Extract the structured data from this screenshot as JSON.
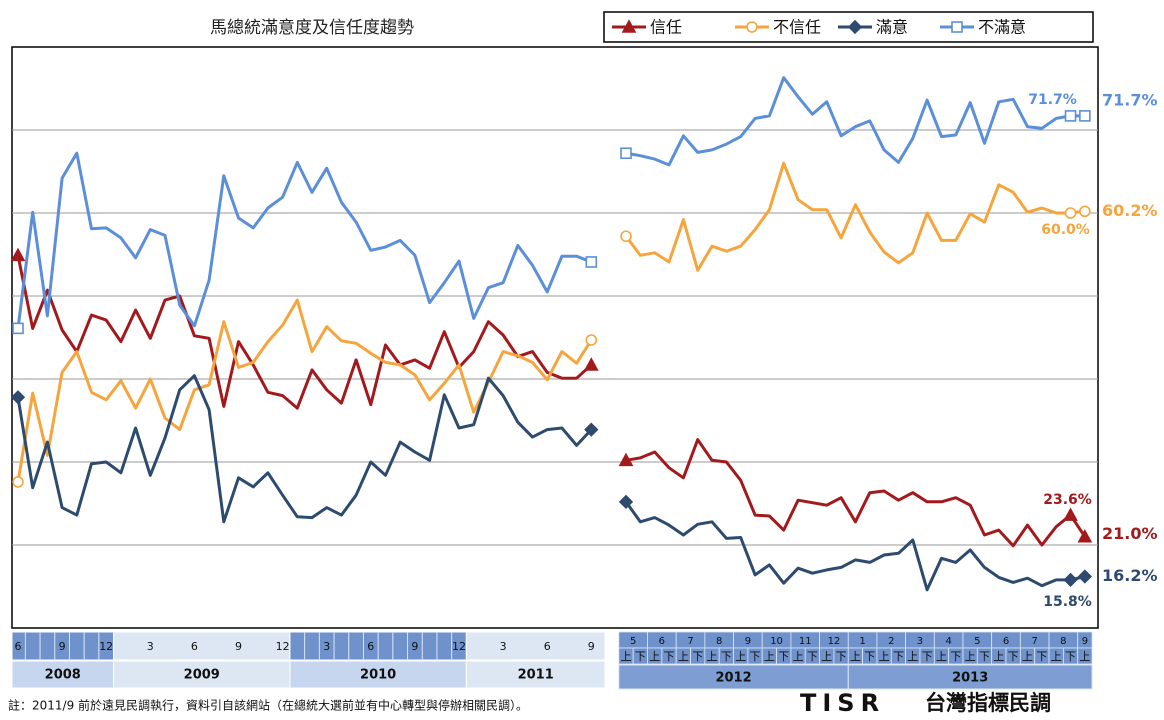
{
  "chart_data": {
    "type": "line",
    "title": "馬總統滿意度及信任度趨勢",
    "ylim": [
      10,
      80
    ],
    "yticks": [
      20,
      30,
      40,
      50,
      60,
      70
    ],
    "grid": true,
    "x_axis": {
      "left": [
        {
          "year": 2008,
          "months": [
            6,
            9,
            12
          ]
        },
        {
          "year": 2009,
          "months": [
            3,
            6,
            9,
            12
          ]
        },
        {
          "year": 2010,
          "months": [
            3,
            6,
            9,
            12
          ]
        },
        {
          "year": 2011,
          "months": [
            3,
            6,
            9
          ]
        }
      ],
      "right": [
        {
          "year": 2012,
          "months": [
            5,
            6,
            7,
            8,
            9,
            10,
            11,
            12
          ]
        },
        {
          "year": 2013,
          "months": [
            1,
            2,
            3,
            4,
            5,
            6,
            7,
            8,
            9
          ]
        }
      ],
      "halves": [
        "上",
        "下"
      ]
    },
    "series": [
      {
        "name": "信任",
        "color": "#a3191c",
        "marker": "triangle",
        "values": [
          54.9,
          46.1,
          50.7,
          45.9,
          43.3,
          47.7,
          47.1,
          44.5,
          48.3,
          44.9,
          49.5,
          50.0,
          45.2,
          44.9,
          36.7,
          44.5,
          41.7,
          38.4,
          38.0,
          36.5,
          41.1,
          38.7,
          37.1,
          42.3,
          36.9,
          44.1,
          41.7,
          42.3,
          41.3,
          45.7,
          41.4,
          43.3,
          46.9,
          45.3,
          42.7,
          43.3,
          40.8,
          40.1,
          40.1,
          41.7,
          null,
          30.2,
          30.5,
          31.2,
          29.3,
          28.1,
          32.7,
          30.2,
          30.0,
          27.8,
          23.6,
          23.5,
          21.8,
          25.4,
          25.1,
          24.8,
          25.7,
          22.8,
          26.3,
          26.5,
          25.4,
          26.3,
          25.2,
          25.2,
          25.7,
          24.8,
          21.2,
          21.8,
          19.9,
          22.4,
          20.0,
          22.2,
          23.6,
          21.0
        ],
        "value_labels": [
          null,
          null,
          null,
          null,
          null,
          null,
          null,
          null,
          null,
          null,
          null,
          null,
          null,
          null,
          null,
          null,
          null,
          null,
          null,
          null,
          null,
          null,
          null,
          null,
          null,
          null,
          null,
          null,
          null,
          null,
          null,
          null,
          null,
          null,
          null,
          null,
          null,
          null,
          null,
          null,
          null,
          null,
          null,
          null,
          null,
          null,
          null,
          null,
          null,
          null,
          null,
          null,
          null,
          null,
          null,
          null,
          null,
          null,
          null,
          null,
          null,
          null,
          null,
          null,
          null,
          null,
          null,
          null,
          null,
          null,
          null,
          null,
          "23.6%",
          "21.0%"
        ]
      },
      {
        "name": "不信任",
        "color": "#f6a53d",
        "marker": "circle-open",
        "values": [
          27.6,
          38.3,
          30.8,
          40.8,
          43.3,
          38.4,
          37.5,
          39.8,
          36.5,
          40.0,
          35.3,
          33.9,
          38.7,
          39.3,
          46.9,
          41.4,
          42.0,
          44.5,
          46.5,
          49.5,
          43.3,
          46.3,
          44.6,
          44.3,
          43.1,
          42.0,
          41.7,
          40.5,
          37.5,
          39.5,
          41.7,
          36.0,
          39.6,
          43.3,
          42.8,
          42.0,
          39.9,
          43.3,
          41.9,
          44.7,
          null,
          57.2,
          54.9,
          55.2,
          54.1,
          59.2,
          53.1,
          56.0,
          55.4,
          56.0,
          58.0,
          60.4,
          66.0,
          61.6,
          60.4,
          60.4,
          57.0,
          61.0,
          57.7,
          55.3,
          54.0,
          55.2,
          60.0,
          56.7,
          56.7,
          59.9,
          58.9,
          63.4,
          62.5,
          60.1,
          60.6,
          60.0,
          60.0,
          60.2
        ],
        "value_labels": [
          null,
          null,
          null,
          null,
          null,
          null,
          null,
          null,
          null,
          null,
          null,
          null,
          null,
          null,
          null,
          null,
          null,
          null,
          null,
          null,
          null,
          null,
          null,
          null,
          null,
          null,
          null,
          null,
          null,
          null,
          null,
          null,
          null,
          null,
          null,
          null,
          null,
          null,
          null,
          null,
          null,
          null,
          null,
          null,
          null,
          null,
          null,
          null,
          null,
          null,
          null,
          null,
          null,
          null,
          null,
          null,
          null,
          null,
          null,
          null,
          null,
          null,
          null,
          null,
          null,
          null,
          null,
          null,
          null,
          null,
          null,
          null,
          "60.0%",
          "60.2%"
        ]
      },
      {
        "name": "滿意",
        "color": "#2d4a6f",
        "marker": "diamond",
        "values": [
          37.8,
          26.9,
          32.4,
          24.5,
          23.6,
          29.8,
          30.0,
          28.7,
          34.1,
          28.4,
          32.9,
          38.7,
          40.4,
          36.3,
          22.8,
          28.1,
          27.0,
          28.7,
          26.0,
          23.4,
          23.3,
          24.5,
          23.6,
          26.0,
          30.0,
          28.4,
          32.4,
          31.2,
          30.2,
          38.1,
          34.1,
          34.5,
          40.1,
          38.0,
          34.8,
          33.0,
          33.9,
          34.1,
          32.0,
          33.9,
          null,
          25.2,
          22.8,
          23.3,
          22.4,
          21.2,
          22.5,
          22.8,
          20.8,
          20.9,
          16.4,
          17.6,
          15.4,
          17.2,
          16.6,
          17.0,
          17.3,
          18.2,
          17.9,
          18.8,
          19.0,
          20.6,
          14.6,
          18.4,
          17.9,
          19.4,
          17.3,
          16.1,
          15.5,
          16.0,
          15.1,
          15.8,
          15.8,
          16.2
        ],
        "value_labels": [
          null,
          null,
          null,
          null,
          null,
          null,
          null,
          null,
          null,
          null,
          null,
          null,
          null,
          null,
          null,
          null,
          null,
          null,
          null,
          null,
          null,
          null,
          null,
          null,
          null,
          null,
          null,
          null,
          null,
          null,
          null,
          null,
          null,
          null,
          null,
          null,
          null,
          null,
          null,
          null,
          null,
          null,
          null,
          null,
          null,
          null,
          null,
          null,
          null,
          null,
          null,
          null,
          null,
          null,
          null,
          null,
          null,
          null,
          null,
          null,
          null,
          null,
          null,
          null,
          null,
          null,
          null,
          null,
          null,
          null,
          null,
          null,
          "15.8%",
          "16.2%"
        ]
      },
      {
        "name": "不滿意",
        "color": "#5b8fd9",
        "marker": "square-open",
        "values": [
          46.1,
          60.1,
          47.6,
          64.2,
          67.2,
          58.1,
          58.2,
          57.0,
          54.6,
          58.0,
          57.3,
          48.9,
          46.4,
          51.9,
          64.5,
          59.4,
          58.2,
          60.6,
          61.9,
          66.1,
          62.5,
          65.4,
          61.3,
          58.9,
          55.5,
          55.9,
          56.7,
          54.9,
          49.2,
          51.6,
          54.2,
          47.3,
          51.0,
          51.6,
          56.1,
          53.7,
          50.5,
          54.8,
          54.8,
          54.1,
          null,
          67.2,
          66.9,
          66.5,
          65.8,
          69.3,
          67.3,
          67.6,
          68.3,
          69.2,
          71.4,
          71.7,
          76.3,
          74.0,
          71.9,
          73.4,
          69.3,
          70.4,
          71.1,
          67.6,
          66.1,
          69.0,
          73.6,
          69.2,
          69.4,
          73.3,
          68.4,
          73.4,
          73.7,
          70.4,
          70.2,
          71.4,
          71.7,
          71.7
        ],
        "value_labels": [
          null,
          null,
          null,
          null,
          null,
          null,
          null,
          null,
          null,
          null,
          null,
          null,
          null,
          null,
          null,
          null,
          null,
          null,
          null,
          null,
          null,
          null,
          null,
          null,
          null,
          null,
          null,
          null,
          null,
          null,
          null,
          null,
          null,
          null,
          null,
          null,
          null,
          null,
          null,
          null,
          null,
          null,
          null,
          null,
          null,
          null,
          null,
          null,
          null,
          null,
          null,
          null,
          null,
          null,
          null,
          null,
          null,
          null,
          null,
          null,
          null,
          null,
          null,
          null,
          null,
          null,
          null,
          null,
          null,
          null,
          null,
          null,
          "71.7%",
          "71.7%"
        ]
      }
    ]
  },
  "footer": {
    "note": "註：2011/9 前於遠見民調執行，資料引自該網站（在總統大選前並有中心轉型與停辦相關民調）。",
    "logo_mark": "TISR",
    "logo_text": "台灣指標民調"
  }
}
